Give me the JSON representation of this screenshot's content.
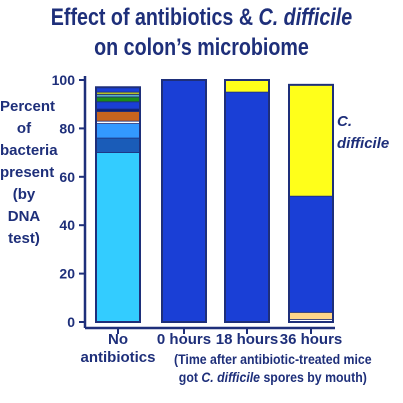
{
  "title_line1_pre": "Effect of antibiotics & ",
  "title_line1_em": "C. difficile",
  "title_line2": "on colon’s microbiome",
  "ylabel_lines": [
    "Percent",
    "of",
    "bacteria",
    "present",
    "(by",
    "DNA",
    "test)"
  ],
  "series_label_lines": [
    "C.",
    "difficile"
  ],
  "x_note_line1": "(Time after antibiotic-treated mice",
  "x_note_line2_pre": "got ",
  "x_note_line2_em": "C. difficile",
  "x_note_line2_post": " spores by mouth)",
  "chart_data": {
    "type": "bar",
    "stacked": true,
    "categories": [
      [
        "No",
        "antibiotics"
      ],
      [
        "0 hours"
      ],
      [
        "18 hours"
      ],
      [
        "36 hours"
      ]
    ],
    "ylim": [
      0,
      100
    ],
    "yticks": [
      0,
      20,
      40,
      60,
      80,
      100
    ],
    "colors": {
      "axis": "#1e2f7a",
      "text": "#1e2f7a",
      "light_blue": "#33ccff",
      "royal_blue": "#1a3fd6",
      "c_difficile": "#ffff1a",
      "pale_orange": "#ffd68a"
    },
    "bars": [
      {
        "segments": [
          {
            "value": 70,
            "color": "#33ccff"
          },
          {
            "value": 6,
            "color": "#1a5cb8"
          },
          {
            "value": 6,
            "color": "#3399ff"
          },
          {
            "value": 1,
            "color": "#ffffff"
          },
          {
            "value": 4,
            "color": "#c8641e"
          },
          {
            "value": 1,
            "color": "#0d1e78"
          },
          {
            "value": 3,
            "color": "#1a3fd6"
          },
          {
            "value": 2,
            "color": "#1a8c1a"
          },
          {
            "value": 1,
            "color": "#5ab4c8"
          },
          {
            "value": 1,
            "color": "#b4be28"
          },
          {
            "value": 2,
            "color": "#1a3fd6"
          }
        ]
      },
      {
        "segments": [
          {
            "value": 100,
            "color": "#1a3fd6"
          }
        ]
      },
      {
        "segments": [
          {
            "value": 95,
            "color": "#1a3fd6"
          },
          {
            "value": 5,
            "color": "#ffff1a"
          }
        ]
      },
      {
        "segments": [
          {
            "value": 1,
            "color": "#ffffff"
          },
          {
            "value": 3,
            "color": "#ffd68a"
          },
          {
            "value": 48,
            "color": "#1a3fd6"
          },
          {
            "value": 46,
            "color": "#ffff1a"
          }
        ]
      }
    ]
  }
}
